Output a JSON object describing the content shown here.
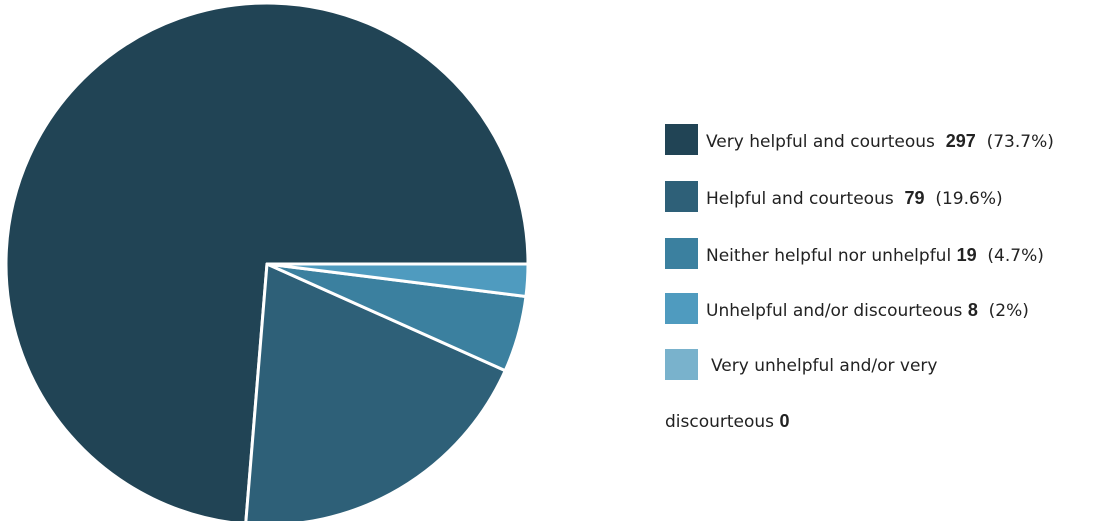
{
  "colors": {
    "c1": "#214455",
    "c2": "#2e6078",
    "c3": "#3b809f",
    "c4": "#4f9bbf",
    "c5": "#79b2cc",
    "slice_border": "#ffffff"
  },
  "chart_data": {
    "type": "pie",
    "title": "",
    "slices": [
      {
        "label": "Very helpful and courteous",
        "value": 297,
        "percent": "(73.7%)",
        "color": "#214455"
      },
      {
        "label": "Helpful and courteous",
        "value": 79,
        "percent": "(19.6%)",
        "color": "#2e6078"
      },
      {
        "label": "Neither helpful nor unhelpful",
        "value": 19,
        "percent": "(4.7%)",
        "color": "#3b809f"
      },
      {
        "label": "Unhelpful and/or discourteous",
        "value": 8,
        "percent": "(2%)",
        "color": "#4f9bbf"
      },
      {
        "label": "Very unhelpful and/or very",
        "label_line2": "discourteous",
        "value": 0,
        "percent": "",
        "color": "#79b2cc"
      }
    ],
    "legend_position": "right"
  }
}
